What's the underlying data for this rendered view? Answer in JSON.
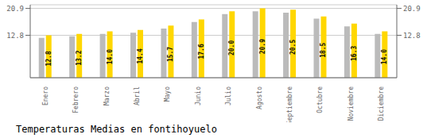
{
  "chart_data": {
    "type": "bar",
    "title": "Temperaturas Medias en fontihoyuelo",
    "categories": [
      "Enero",
      "Febrero",
      "Marzo",
      "Abril",
      "Mayo",
      "Junio",
      "Julio",
      "Agosto",
      "Septiembre",
      "Octubre",
      "Noviembre",
      "Diciembre"
    ],
    "series": [
      {
        "color": "#BBBBBB",
        "values": [
          12.0,
          12.5,
          13.2,
          13.6,
          14.8,
          16.8,
          19.2,
          20.0,
          19.6,
          17.8,
          15.5,
          13.2
        ]
      },
      {
        "color": "#FFD700",
        "values": [
          12.8,
          13.2,
          14.0,
          14.4,
          15.7,
          17.6,
          20.0,
          20.9,
          20.5,
          18.5,
          16.3,
          14.0
        ],
        "data_labels": true,
        "value_labels": [
          "12.8",
          "13.2",
          "14.0",
          "14.4",
          "15.7",
          "17.6",
          "20.0",
          "20.9",
          "20.5",
          "18.5",
          "16.3",
          "14.0"
        ]
      }
    ],
    "ylim": [
      0,
      22.0
    ],
    "yticks": [
      12.8,
      20.9
    ],
    "y2lim": [
      0,
      22.0
    ],
    "y2ticks": [
      12.8,
      20.9
    ],
    "grid": true
  }
}
